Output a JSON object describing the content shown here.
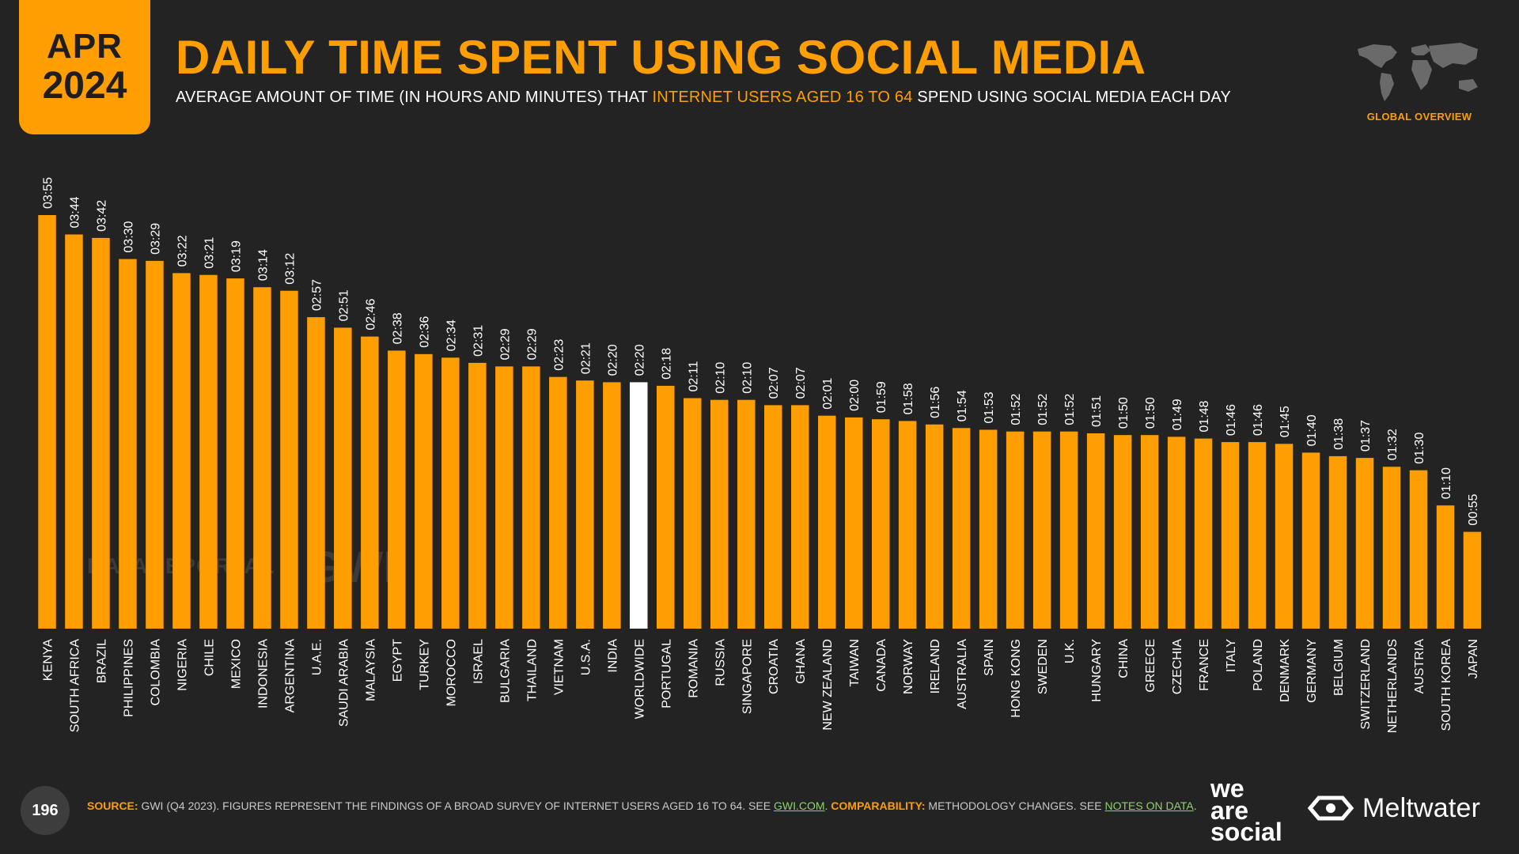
{
  "header": {
    "month": "APR",
    "year": "2024",
    "title": "DAILY TIME SPENT USING SOCIAL MEDIA",
    "subtitle_pre": "AVERAGE AMOUNT OF TIME (IN HOURS AND MINUTES) THAT ",
    "subtitle_highlight": "INTERNET USERS AGED 16 TO 64",
    "subtitle_post": " SPEND USING SOCIAL MEDIA EACH DAY",
    "section": "GLOBAL OVERVIEW"
  },
  "watermarks": {
    "datareportal": "DATAREPORTAL",
    "gwi": "GWI."
  },
  "footer": {
    "page_number": "196",
    "source_label": "SOURCE:",
    "source_text": " GWI (Q4 2023). FIGURES REPRESENT THE FINDINGS OF A BROAD SURVEY OF INTERNET USERS AGED 16 TO 64. SEE ",
    "source_link": "GWI.COM",
    "source_sep": ". ",
    "comparability_label": "COMPARABILITY:",
    "comparability_text": " METHODOLOGY CHANGES. SEE ",
    "comparability_link": "NOTES ON DATA",
    "end": ".",
    "brand_was_1": "we",
    "brand_was_2": "are",
    "brand_was_3": "social",
    "brand_meltwater": "Meltwater"
  },
  "colors": {
    "accent": "#ff9e00",
    "background": "#232323",
    "highlight_bar": "#ffffff"
  },
  "chart_data": {
    "type": "bar",
    "highlight": "WORLDWIDE",
    "categories": [
      "KENYA",
      "SOUTH AFRICA",
      "BRAZIL",
      "PHILIPPINES",
      "COLOMBIA",
      "NIGERIA",
      "CHILE",
      "MEXICO",
      "INDONESIA",
      "ARGENTINA",
      "U.A.E.",
      "SAUDI ARABIA",
      "MALAYSIA",
      "EGYPT",
      "TURKEY",
      "MOROCCO",
      "ISRAEL",
      "BULGARIA",
      "THAILAND",
      "VIETNAM",
      "U.S.A.",
      "INDIA",
      "WORLDWIDE",
      "PORTUGAL",
      "ROMANIA",
      "RUSSIA",
      "SINGAPORE",
      "CROATIA",
      "GHANA",
      "NEW ZEALAND",
      "TAIWAN",
      "CANADA",
      "NORWAY",
      "IRELAND",
      "AUSTRALIA",
      "SPAIN",
      "HONG KONG",
      "SWEDEN",
      "U.K.",
      "HUNGARY",
      "CHINA",
      "GREECE",
      "CZECHIA",
      "FRANCE",
      "ITALY",
      "POLAND",
      "DENMARK",
      "GERMANY",
      "BELGIUM",
      "SWITZERLAND",
      "NETHERLANDS",
      "AUSTRIA",
      "SOUTH KOREA",
      "JAPAN"
    ],
    "labels": [
      "03:55",
      "03:44",
      "03:42",
      "03:30",
      "03:29",
      "03:22",
      "03:21",
      "03:19",
      "03:14",
      "03:12",
      "02:57",
      "02:51",
      "02:46",
      "02:38",
      "02:36",
      "02:34",
      "02:31",
      "02:29",
      "02:29",
      "02:23",
      "02:21",
      "02:20",
      "02:20",
      "02:18",
      "02:11",
      "02:10",
      "02:10",
      "02:07",
      "02:07",
      "02:01",
      "02:00",
      "01:59",
      "01:58",
      "01:56",
      "01:54",
      "01:53",
      "01:52",
      "01:52",
      "01:52",
      "01:51",
      "01:50",
      "01:50",
      "01:49",
      "01:48",
      "01:46",
      "01:46",
      "01:45",
      "01:40",
      "01:38",
      "01:37",
      "01:32",
      "01:30",
      "01:10",
      "00:55"
    ],
    "values": [
      235,
      224,
      222,
      210,
      209,
      202,
      201,
      199,
      194,
      192,
      177,
      171,
      166,
      158,
      156,
      154,
      151,
      149,
      149,
      143,
      141,
      140,
      140,
      138,
      131,
      130,
      130,
      127,
      127,
      121,
      120,
      119,
      118,
      116,
      114,
      113,
      112,
      112,
      112,
      111,
      110,
      110,
      109,
      108,
      106,
      106,
      105,
      100,
      98,
      97,
      92,
      90,
      70,
      55
    ],
    "unit": "minutes"
  }
}
